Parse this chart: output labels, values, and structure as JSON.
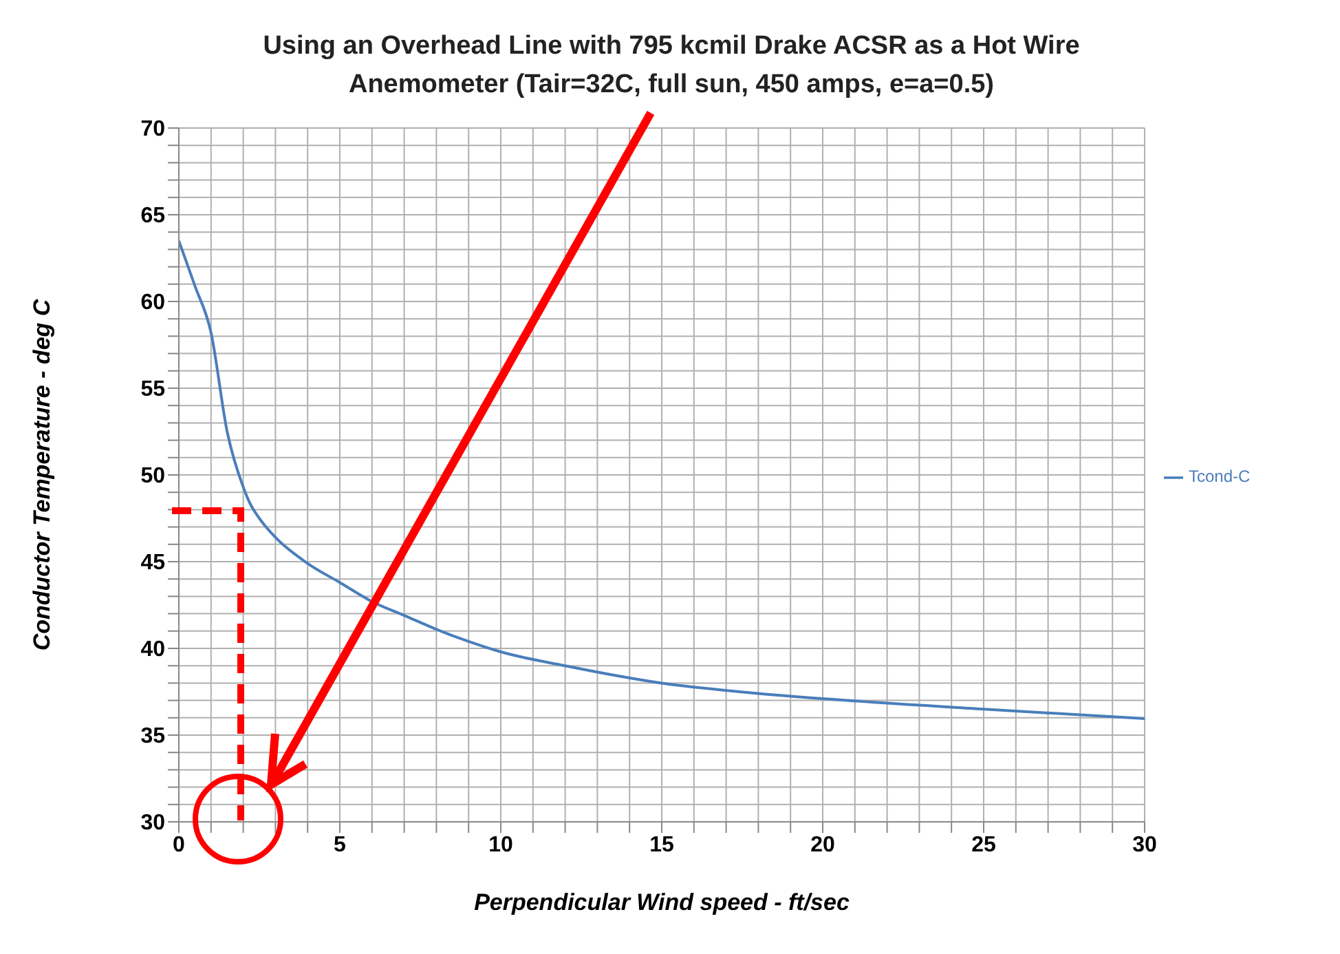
{
  "chart_data": {
    "type": "line",
    "title": "Using an Overhead Line with 795 kcmil Drake ACSR as a Hot Wire Anemometer (Tair=32C, full sun, 450 amps, e=a=0.5)",
    "xlabel": "Perpendicular Wind speed - ft/sec",
    "ylabel": "Conductor Temperature - deg C",
    "x": [
      0,
      0.5,
      1,
      1.5,
      2,
      2.2,
      2.5,
      3,
      4,
      5,
      6,
      7,
      8,
      9,
      10,
      12,
      15,
      18,
      20,
      25,
      30
    ],
    "series": [
      {
        "name": "Tcond-C",
        "color": "#4a7ebb",
        "values": [
          63.5,
          60.9,
          58.2,
          52.5,
          49.3,
          48.4,
          47.5,
          46.4,
          44.9,
          43.8,
          42.7,
          41.9,
          41.1,
          40.4,
          39.8,
          39.0,
          38.0,
          37.4,
          37.1,
          36.5,
          35.95
        ]
      }
    ],
    "xlim": [
      0,
      30
    ],
    "ylim": [
      30,
      70
    ],
    "xticks": [
      0,
      {
        "value": 1,
        "label": null
      },
      {
        "value": 2,
        "label": null
      },
      {
        "value": 3,
        "label": null
      },
      {
        "value": 4,
        "label": null
      },
      5,
      {
        "value": 6,
        "label": null
      },
      {
        "value": 7,
        "label": null
      },
      {
        "value": 8,
        "label": null
      },
      {
        "value": 9,
        "label": null
      },
      10,
      {
        "value": 11,
        "label": null
      },
      {
        "value": 12,
        "label": null
      },
      {
        "value": 13,
        "label": null
      },
      {
        "value": 14,
        "label": null
      },
      15,
      {
        "value": 16,
        "label": null
      },
      {
        "value": 17,
        "label": null
      },
      {
        "value": 18,
        "label": null
      },
      {
        "value": 19,
        "label": null
      },
      20,
      {
        "value": 21,
        "label": null
      },
      {
        "value": 22,
        "label": null
      },
      {
        "value": 23,
        "label": null
      },
      {
        "value": 24,
        "label": null
      },
      25,
      {
        "value": 26,
        "label": null
      },
      {
        "value": 27,
        "label": null
      },
      {
        "value": 28,
        "label": null
      },
      {
        "value": 29,
        "label": null
      },
      30
    ],
    "yticks": [
      30,
      {
        "value": 31,
        "label": null
      },
      {
        "value": 32,
        "label": null
      },
      {
        "value": 33,
        "label": null
      },
      {
        "value": 34,
        "label": null
      },
      35,
      {
        "value": 36,
        "label": null
      },
      {
        "value": 37,
        "label": null
      },
      {
        "value": 38,
        "label": null
      },
      {
        "value": 39,
        "label": null
      },
      40,
      {
        "value": 41,
        "label": null
      },
      {
        "value": 42,
        "label": null
      },
      {
        "value": 43,
        "label": null
      },
      {
        "value": 44,
        "label": null
      },
      45,
      {
        "value": 46,
        "label": null
      },
      {
        "value": 47,
        "label": null
      },
      {
        "value": 48,
        "label": null
      },
      {
        "value": 49,
        "label": null
      },
      50,
      {
        "value": 51,
        "label": null
      },
      {
        "value": 52,
        "label": null
      },
      {
        "value": 53,
        "label": null
      },
      {
        "value": 54,
        "label": null
      },
      55,
      {
        "value": 56,
        "label": null
      },
      {
        "value": 57,
        "label": null
      },
      {
        "value": 58,
        "label": null
      },
      {
        "value": 59,
        "label": null
      },
      60,
      {
        "value": 61,
        "label": null
      },
      {
        "value": 62,
        "label": null
      },
      {
        "value": 63,
        "label": null
      },
      {
        "value": 64,
        "label": null
      },
      65,
      {
        "value": 66,
        "label": null
      },
      {
        "value": 67,
        "label": null
      },
      {
        "value": 68,
        "label": null
      },
      {
        "value": 69,
        "label": null
      },
      70
    ],
    "grid": true,
    "legend": "right",
    "marker": "none",
    "line_style": "solid"
  }
}
